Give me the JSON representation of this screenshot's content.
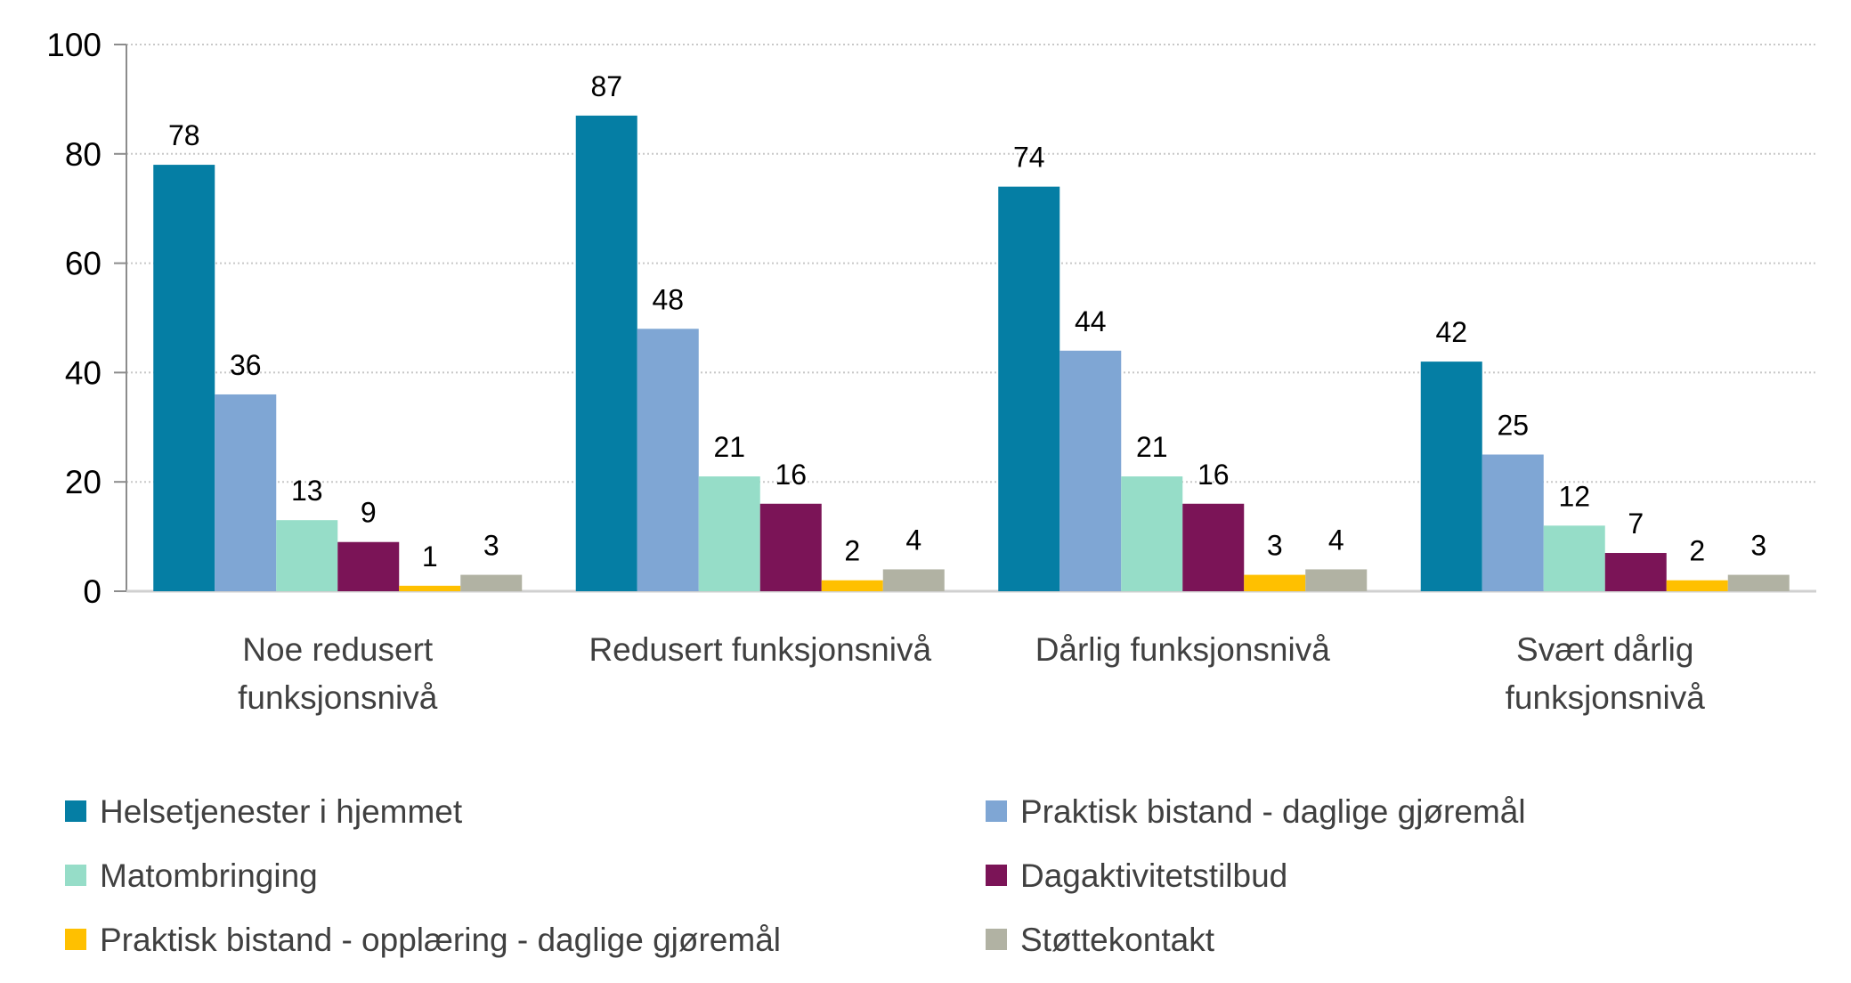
{
  "chart_data": {
    "type": "bar",
    "title": "",
    "xlabel": "",
    "ylabel": "",
    "ylim": [
      0,
      100
    ],
    "yticks": [
      0,
      20,
      40,
      60,
      80,
      100
    ],
    "grid": true,
    "legend_position": "bottom",
    "categories": [
      [
        "Noe redusert",
        "funksjonsnivå"
      ],
      [
        "Redusert funksjonsnivå"
      ],
      [
        "Dårlig funksjonsnivå"
      ],
      [
        "Svært dårlig",
        "funksjonsnivå"
      ]
    ],
    "series": [
      {
        "name": "Helsetjenester i hjemmet",
        "color": "#057EA4",
        "values": [
          78,
          87,
          74,
          42
        ]
      },
      {
        "name": "Praktisk bistand - daglige gjøremål",
        "color": "#7FA6D4",
        "values": [
          36,
          48,
          44,
          25
        ]
      },
      {
        "name": "Matombringing",
        "color": "#96DDC8",
        "values": [
          13,
          21,
          21,
          12
        ]
      },
      {
        "name": "Dagaktivitetstilbud",
        "color": "#7B1457",
        "values": [
          9,
          16,
          16,
          7
        ]
      },
      {
        "name": "Praktisk bistand - opplæring - daglige gjøremål",
        "color": "#FFC000",
        "values": [
          1,
          2,
          3,
          2
        ]
      },
      {
        "name": "Støttekontakt",
        "color": "#B1B2A3",
        "values": [
          3,
          4,
          4,
          3
        ]
      }
    ]
  }
}
